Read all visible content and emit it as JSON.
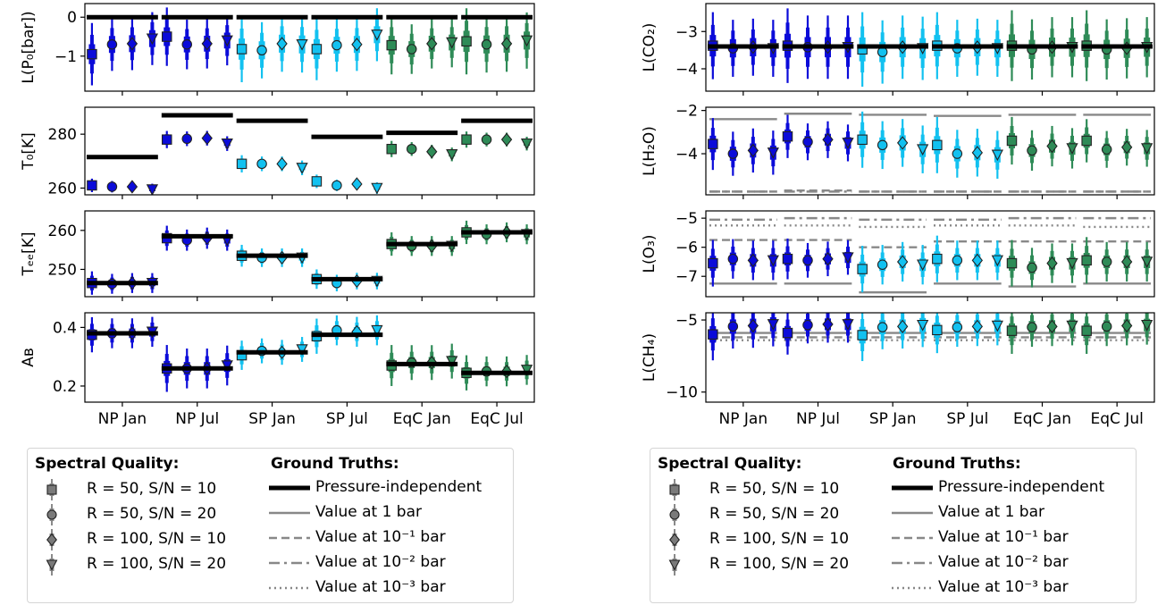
{
  "categories": [
    "NP Jan",
    "NP Jul",
    "SP Jan",
    "SP Jul",
    "EqC Jan",
    "EqC Jul"
  ],
  "category_colors": [
    "#0b0bd9",
    "#0b0bd9",
    "#12c1f0",
    "#12c1f0",
    "#2e8b57",
    "#2e8b57"
  ],
  "truth_color": "#000000",
  "pressure_line_color": "#888888",
  "marker_names": [
    "square",
    "circle",
    "diamond",
    "triangle-down"
  ],
  "legends": [
    {
      "quality_title": "Spectral Quality:",
      "truths_title": "Ground Truths:",
      "quality_items": [
        "R = 50,  S/N = 10",
        "R = 50,  S/N = 20",
        "R = 100,  S/N = 10",
        "R = 100,  S/N = 20"
      ],
      "truth_items": [
        "Pressure-independent",
        "Value at 1 bar",
        "Value at 10⁻¹ bar",
        "Value at 10⁻² bar",
        "Value at 10⁻³ bar"
      ],
      "truth_styles": [
        "thick",
        "solid",
        "dashed",
        "dashdot",
        "dotted"
      ]
    },
    {
      "quality_title": "Spectral Quality:",
      "truths_title": "Ground Truths:",
      "quality_items": [
        "R = 50,  S/N = 10",
        "R = 50,  S/N = 20",
        "R = 100,  S/N = 10",
        "R = 100,  S/N = 20"
      ],
      "truth_items": [
        "Pressure-independent",
        "Value at 1 bar",
        "Value at 10⁻¹ bar",
        "Value at 10⁻² bar",
        "Value at 10⁻³ bar"
      ],
      "truth_styles": [
        "thick",
        "solid",
        "dashed",
        "dashdot",
        "dotted"
      ]
    }
  ],
  "chart_data": [
    {
      "type": "scatter",
      "ylabel": "L(P₀[bar])",
      "ylim": [
        -1.9,
        0.35
      ],
      "yticks": [
        0,
        -1
      ],
      "ytick_labels": [
        "0",
        "−1"
      ],
      "truth": [
        0,
        0,
        0,
        0,
        0,
        0
      ],
      "medians": [
        [
          -0.95,
          -0.7,
          -0.68,
          -0.55
        ],
        [
          -0.5,
          -0.7,
          -0.68,
          -0.6
        ],
        [
          -0.82,
          -0.85,
          -0.68,
          -0.7
        ],
        [
          -0.82,
          -0.72,
          -0.7,
          -0.45
        ],
        [
          -0.72,
          -0.82,
          -0.68,
          -0.65
        ],
        [
          -0.62,
          -0.7,
          -0.68,
          -0.6
        ]
      ],
      "spreads": [
        0.8,
        0.75,
        0.85,
        0.8,
        0.75,
        0.85
      ]
    },
    {
      "type": "scatter",
      "ylabel": "T₀[K]",
      "ylim": [
        257.5,
        290
      ],
      "yticks": [
        260,
        280
      ],
      "ytick_labels": [
        "260",
        "280"
      ],
      "truth": [
        271.5,
        287,
        285,
        279,
        280.5,
        285
      ],
      "medians": [
        [
          261,
          260.5,
          260.5,
          259.5
        ],
        [
          278,
          278.3,
          278.5,
          276.5
        ],
        [
          269,
          269,
          269,
          267.5
        ],
        [
          262.5,
          261,
          261.5,
          260
        ],
        [
          274.5,
          274.5,
          273.5,
          272.5
        ],
        [
          278,
          278,
          278,
          276.5
        ]
      ],
      "spreads": [
        2.5,
        3.2,
        3.2,
        2.5,
        3,
        3
      ]
    },
    {
      "type": "scatter",
      "ylabel": "Tₑₑ[K]",
      "ylim": [
        243,
        265
      ],
      "yticks": [
        250,
        260
      ],
      "ytick_labels": [
        "250",
        "260"
      ],
      "truth": [
        246.5,
        258.5,
        253.5,
        247.5,
        256.5,
        259.5
      ],
      "medians": [
        [
          246.5,
          246.3,
          246.5,
          246.5
        ],
        [
          258,
          257.5,
          258,
          257.5
        ],
        [
          253.5,
          253,
          253,
          253
        ],
        [
          247.5,
          246.5,
          247,
          247
        ],
        [
          256.5,
          256,
          256,
          256
        ],
        [
          259.5,
          259,
          259.5,
          259
        ]
      ],
      "spreads": [
        3,
        3.2,
        2.8,
        2.5,
        3,
        3
      ]
    },
    {
      "type": "scatter",
      "ylabel": "Aʙ",
      "ylim": [
        0.145,
        0.45
      ],
      "yticks": [
        0.2,
        0.4
      ],
      "ytick_labels": [
        "0.2",
        "0.4"
      ],
      "truth": [
        0.38,
        0.26,
        0.315,
        0.375,
        0.275,
        0.245
      ],
      "medians": [
        [
          0.375,
          0.38,
          0.38,
          0.385
        ],
        [
          0.26,
          0.26,
          0.26,
          0.27
        ],
        [
          0.305,
          0.32,
          0.315,
          0.325
        ],
        [
          0.37,
          0.39,
          0.385,
          0.39
        ],
        [
          0.27,
          0.28,
          0.28,
          0.285
        ],
        [
          0.245,
          0.25,
          0.25,
          0.255
        ]
      ],
      "spreads": [
        0.06,
        0.08,
        0.05,
        0.06,
        0.07,
        0.06
      ]
    },
    {
      "type": "scatter",
      "ylabel": "L(CO₂)",
      "ylim": [
        -4.6,
        -2.25
      ],
      "yticks": [
        -3,
        -4
      ],
      "ytick_labels": [
        "−3",
        "−4"
      ],
      "truth": [
        -3.4,
        -3.4,
        -3.4,
        -3.4,
        -3.4,
        -3.4
      ],
      "medians": [
        [
          -3.38,
          -3.45,
          -3.42,
          -3.45
        ],
        [
          -3.38,
          -3.42,
          -3.42,
          -3.42
        ],
        [
          -3.48,
          -3.55,
          -3.42,
          -3.45
        ],
        [
          -3.38,
          -3.45,
          -3.42,
          -3.45
        ],
        [
          -3.38,
          -3.48,
          -3.42,
          -3.42
        ],
        [
          -3.38,
          -3.48,
          -3.45,
          -3.42
        ]
      ],
      "spreads": [
        0.9,
        1.0,
        1.0,
        0.9,
        0.95,
        0.95
      ]
    },
    {
      "type": "scatter",
      "ylabel": "L(H₂O)",
      "ylim": [
        -5.9,
        -1.85
      ],
      "yticks": [
        -2,
        -4
      ],
      "ytick_labels": [
        "−2",
        "−4"
      ],
      "truth_levels": {
        "solid": [
          -2.4,
          -2.15,
          -2.2,
          -2.25,
          -2.2,
          -2.2
        ],
        "dashed": [
          -5.75,
          -5.7,
          -5.75,
          -5.75,
          -5.75,
          -5.75
        ],
        "dashdot": [
          -5.75,
          -5.75,
          -5.75,
          -5.75,
          -5.75,
          -5.75
        ]
      },
      "medians": [
        [
          -3.55,
          -4.0,
          -3.85,
          -3.95
        ],
        [
          -3.2,
          -3.45,
          -3.35,
          -3.5
        ],
        [
          -3.35,
          -3.6,
          -3.5,
          -3.8
        ],
        [
          -3.6,
          -4.0,
          -3.95,
          -4.05
        ],
        [
          -3.4,
          -3.85,
          -3.65,
          -3.75
        ],
        [
          -3.4,
          -3.8,
          -3.7,
          -3.75
        ]
      ],
      "spreads": [
        1.2,
        1.0,
        1.3,
        1.3,
        1.1,
        1.0
      ]
    },
    {
      "type": "scatter",
      "ylabel": "L(O₃)",
      "ylim": [
        -7.7,
        -4.75
      ],
      "yticks": [
        -5,
        -6,
        -7
      ],
      "ytick_labels": [
        "−5",
        "−6",
        "−7"
      ],
      "truth_levels": {
        "solid": [
          -7.25,
          -7.25,
          -7.55,
          -7.25,
          -7.35,
          -7.25
        ],
        "dashed": [
          -5.75,
          -5.75,
          -6.0,
          -5.8,
          -5.8,
          -5.8
        ],
        "dashdot": [
          -5.05,
          -5.0,
          -5.05,
          -5.05,
          -5.0,
          -5.0
        ],
        "dotted": [
          -5.25,
          -5.25,
          -5.3,
          -5.25,
          -5.25,
          -5.3
        ]
      },
      "medians": [
        [
          -6.55,
          -6.4,
          -6.45,
          -6.45
        ],
        [
          -6.4,
          -6.45,
          -6.4,
          -6.35
        ],
        [
          -6.75,
          -6.6,
          -6.5,
          -6.6
        ],
        [
          -6.4,
          -6.45,
          -6.45,
          -6.45
        ],
        [
          -6.55,
          -6.7,
          -6.55,
          -6.55
        ],
        [
          -6.45,
          -6.5,
          -6.5,
          -6.5
        ]
      ],
      "spreads": [
        0.8,
        0.7,
        0.8,
        0.8,
        0.8,
        0.8
      ]
    },
    {
      "type": "scatter",
      "ylabel": "L(CH₄)",
      "ylim": [
        -10.7,
        -4.5
      ],
      "yticks": [
        -5,
        -10
      ],
      "ytick_labels": [
        "−5",
        "−10"
      ],
      "truth_levels": {
        "solid": [
          -5.9,
          -5.9,
          -5.9,
          -5.9,
          -5.9,
          -5.9
        ],
        "dashed": [
          -6.2,
          -6.2,
          -6.2,
          -6.2,
          -6.2,
          -6.2
        ],
        "dotted": [
          -6.4,
          -6.4,
          -6.4,
          -6.4,
          -6.4,
          -6.4
        ]
      },
      "medians": [
        [
          -6.0,
          -5.45,
          -5.4,
          -5.3
        ],
        [
          -5.9,
          -5.35,
          -5.3,
          -5.3
        ],
        [
          -6.05,
          -5.5,
          -5.45,
          -5.35
        ],
        [
          -5.7,
          -5.5,
          -5.45,
          -5.4
        ],
        [
          -5.75,
          -5.5,
          -5.45,
          -5.4
        ],
        [
          -5.75,
          -5.45,
          -5.4,
          -5.35
        ]
      ],
      "spreads": [
        1.8,
        1.5,
        1.8,
        1.6,
        1.6,
        1.6
      ]
    }
  ]
}
